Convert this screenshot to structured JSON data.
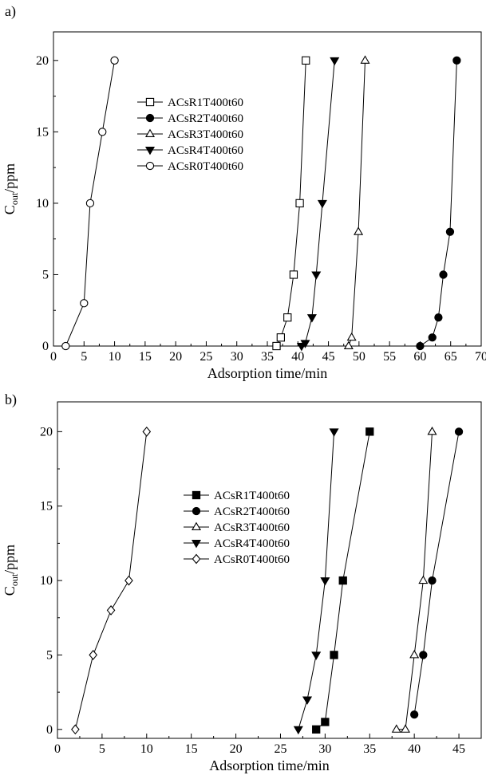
{
  "chart_data": [
    {
      "type": "line",
      "panel_label": "a)",
      "xlabel": "Adsorption time/min",
      "ylabel_main": "C",
      "ylabel_sub": "out",
      "ylabel_unit": "/ppm",
      "xlim": [
        0,
        70
      ],
      "ylim": [
        0,
        22
      ],
      "xticks": [
        0,
        5,
        10,
        15,
        20,
        25,
        30,
        35,
        40,
        45,
        50,
        55,
        60,
        65,
        70
      ],
      "yticks": [
        0,
        5,
        10,
        15,
        20
      ],
      "legend_position": "top-left",
      "series": [
        {
          "name": "ACsR1T400t60",
          "marker": "square-open",
          "x": [
            36.5,
            37.2,
            38.3,
            39.3,
            40.3,
            41.3
          ],
          "y": [
            0,
            0.6,
            2,
            5,
            10,
            20
          ]
        },
        {
          "name": "ACsR2T400t60",
          "marker": "circle-filled",
          "x": [
            60,
            62,
            63,
            63.8,
            64.9,
            66
          ],
          "y": [
            0,
            0.6,
            2,
            5,
            8,
            20
          ]
        },
        {
          "name": "ACsR3T400t60",
          "marker": "triangle-up-open",
          "x": [
            48.3,
            48.8,
            49.9,
            51
          ],
          "y": [
            0,
            0.6,
            8,
            20
          ]
        },
        {
          "name": "ACsR4T400t60",
          "marker": "triangle-down-filled",
          "x": [
            40.6,
            41.2,
            42.3,
            43,
            44,
            46
          ],
          "y": [
            0,
            0.2,
            2,
            5,
            10,
            20
          ]
        },
        {
          "name": "ACsR0T400t60",
          "marker": "circle-open",
          "x": [
            2,
            5,
            6,
            8,
            10
          ],
          "y": [
            0,
            3,
            10,
            15,
            20
          ]
        }
      ]
    },
    {
      "type": "line",
      "panel_label": "b)",
      "xlabel": "Adsorption time/min",
      "ylabel_main": "C",
      "ylabel_sub": "out",
      "ylabel_unit": "/ppm",
      "xlim": [
        0,
        47.5
      ],
      "ylim": [
        -0.6,
        22
      ],
      "xticks": [
        0,
        5,
        10,
        15,
        20,
        25,
        30,
        35,
        40,
        45
      ],
      "yticks": [
        0,
        5,
        10,
        15,
        20
      ],
      "legend_position": "top-center",
      "series": [
        {
          "name": "ACsR1T400t60",
          "marker": "square-filled",
          "x": [
            29,
            30,
            31,
            32,
            35
          ],
          "y": [
            0,
            0.5,
            5,
            10,
            20
          ]
        },
        {
          "name": "ACsR2T400t60",
          "marker": "circle-filled",
          "x": [
            40,
            41,
            42,
            45
          ],
          "y": [
            1,
            5,
            10,
            20
          ]
        },
        {
          "name": "ACsR3T400t60",
          "marker": "triangle-up-open",
          "x": [
            38,
            39,
            40,
            41,
            42
          ],
          "y": [
            0,
            0,
            5,
            10,
            20
          ]
        },
        {
          "name": "ACsR4T400t60",
          "marker": "triangle-down-filled",
          "x": [
            27,
            28,
            29,
            30,
            31
          ],
          "y": [
            0,
            2,
            5,
            10,
            20
          ]
        },
        {
          "name": "ACsR0T400t60",
          "marker": "diamond-open",
          "x": [
            2,
            4,
            6,
            8,
            10
          ],
          "y": [
            0,
            5,
            8,
            10,
            20
          ]
        }
      ]
    }
  ]
}
